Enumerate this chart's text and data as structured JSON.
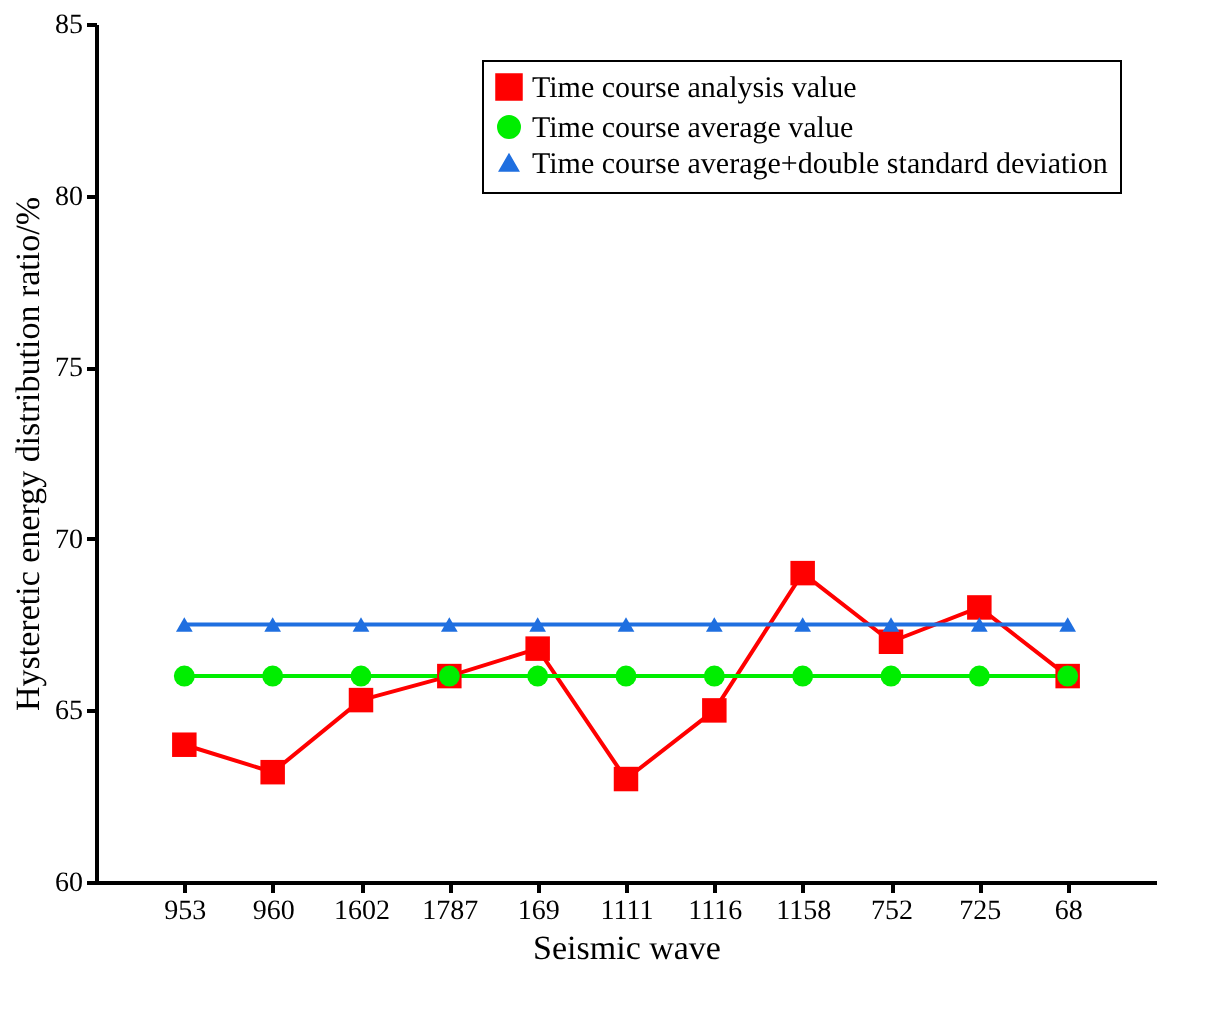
{
  "chart_data": {
    "type": "line",
    "xlabel": "Seismic wave",
    "ylabel": "Hysteretic energy distribution ratio/%",
    "categories": [
      "953",
      "960",
      "1602",
      "1787",
      "169",
      "1111",
      "1116",
      "1158",
      "752",
      "725",
      "68"
    ],
    "series": [
      {
        "name": "Time course analysis value",
        "color": "#ff0000",
        "marker": "square",
        "values": [
          64.0,
          63.2,
          65.3,
          66.0,
          66.8,
          63.0,
          65.0,
          69.0,
          67.0,
          68.0,
          66.0
        ]
      },
      {
        "name": "Time course average value",
        "color": "#00ee00",
        "marker": "circle",
        "values": [
          66,
          66,
          66,
          66,
          66,
          66,
          66,
          66,
          66,
          66,
          66
        ]
      },
      {
        "name": "Time course average+double standard deviation",
        "color": "#1f6fe0",
        "marker": "triangle",
        "values": [
          67.5,
          67.5,
          67.5,
          67.5,
          67.5,
          67.5,
          67.5,
          67.5,
          67.5,
          67.5,
          67.5
        ]
      }
    ],
    "ylim": [
      60,
      85
    ],
    "yticks": [
      60,
      65,
      70,
      75,
      80,
      85
    ],
    "grid": false,
    "legend": "top right",
    "line_style": "solid"
  }
}
